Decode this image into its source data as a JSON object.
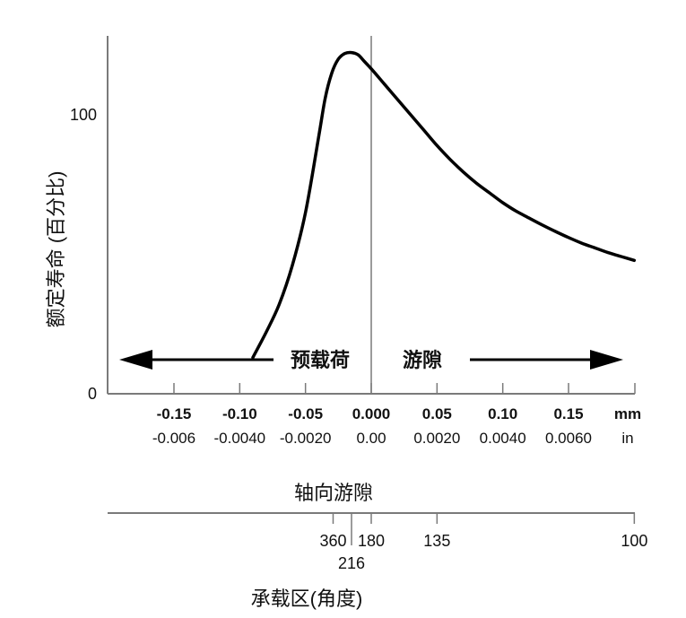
{
  "chart_data": {
    "type": "line",
    "ylabel": "额定寿命 (百分比)",
    "xlabel": "轴向游隙",
    "y_ticks": [
      "100",
      "0"
    ],
    "x_ticks": [
      {
        "value": -0.15,
        "mm": "-0.15",
        "in": "-0.006"
      },
      {
        "value": -0.1,
        "mm": "-0.10",
        "in": "-0.0040"
      },
      {
        "value": -0.05,
        "mm": "-0.05",
        "in": "-0.0020"
      },
      {
        "value": 0.0,
        "mm": "0.000",
        "in": "0.00"
      },
      {
        "value": 0.05,
        "mm": "0.05",
        "in": "0.0020"
      },
      {
        "value": 0.1,
        "mm": "0.10",
        "in": "0.0040"
      },
      {
        "value": 0.15,
        "mm": "0.15",
        "in": "0.0060"
      }
    ],
    "unit_mm": "mm",
    "unit_in": "in",
    "xlim": [
      -0.2,
      0.2
    ],
    "ylim": [
      0,
      130
    ],
    "series": [
      {
        "x": [
          -0.09,
          -0.08,
          -0.07,
          -0.06,
          -0.05,
          -0.04,
          -0.035,
          -0.03,
          -0.025,
          -0.02,
          -0.015,
          -0.01,
          -0.005,
          0.0,
          0.01,
          0.02,
          0.03,
          0.04,
          0.05,
          0.06,
          0.07,
          0.08,
          0.09,
          0.1,
          0.11,
          0.12,
          0.13,
          0.14,
          0.15,
          0.16,
          0.17,
          0.18,
          0.19,
          0.2
        ],
        "y": [
          13,
          22,
          32,
          46,
          65,
          92,
          106,
          115,
          120,
          122,
          122.3,
          121.5,
          119,
          116.5,
          111,
          105.5,
          100,
          94.5,
          89,
          84,
          79.5,
          75.5,
          72,
          68.5,
          65.5,
          63,
          60.5,
          58.2,
          56,
          54,
          52.3,
          50.6,
          49.2,
          47.8
        ]
      }
    ],
    "regions": {
      "preload": "预载荷",
      "clearance": "游隙"
    },
    "load_zone": {
      "label": "承载区(角度)",
      "ticks": [
        {
          "x": -0.029,
          "label": "360"
        },
        {
          "x": -0.015,
          "label": "216"
        },
        {
          "x": 0.0,
          "label": "180"
        },
        {
          "x": 0.05,
          "label": "135"
        },
        {
          "x": 0.2,
          "label": "100"
        }
      ]
    },
    "colors": {
      "axis": "#7a7a7a",
      "line": "#000000"
    }
  }
}
